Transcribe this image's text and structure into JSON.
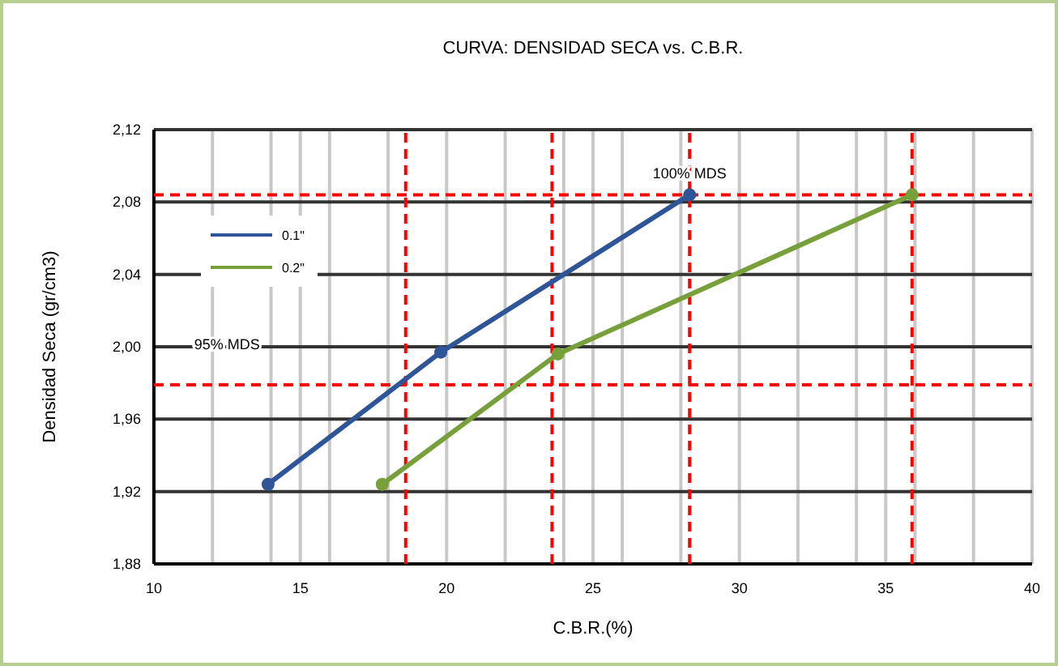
{
  "chart_data": {
    "type": "line",
    "title": "CURVA: DENSIDAD SECA vs. C.B.R.",
    "xlabel": "C.B.R.(%)",
    "ylabel": "Densidad Seca (gr/cm3)",
    "xlim": [
      10,
      40
    ],
    "ylim": [
      1.88,
      2.12
    ],
    "xticks": [
      10,
      {
        "value": 12,
        "label": null
      },
      {
        "value": 14,
        "label": null
      },
      15,
      {
        "value": 16,
        "label": null
      },
      {
        "value": 18,
        "label": null
      },
      20,
      {
        "value": 22,
        "label": null
      },
      {
        "value": 24,
        "label": null
      },
      25,
      {
        "value": 26,
        "label": null
      },
      {
        "value": 28,
        "label": null
      },
      30,
      {
        "value": 32,
        "label": null
      },
      {
        "value": 34,
        "label": null
      },
      35,
      {
        "value": 36,
        "label": null
      },
      {
        "value": 38,
        "label": null
      },
      40
    ],
    "yticks": [
      {
        "value": 1.88,
        "label": "1,88"
      },
      {
        "value": 1.92,
        "label": "1,92"
      },
      {
        "value": 1.96,
        "label": "1,96"
      },
      {
        "value": 2.0,
        "label": "2,00"
      },
      {
        "value": 2.04,
        "label": "2,04"
      },
      {
        "value": 2.08,
        "label": "2,08"
      },
      {
        "value": 2.12,
        "label": "2,12"
      }
    ],
    "grid": true,
    "legend": "top left",
    "marker": "circle",
    "line_style": "solid",
    "series": [
      {
        "name": "0.1\"",
        "color": "#2e5597",
        "x": [
          13.9,
          19.8,
          28.3
        ],
        "values": [
          1.924,
          1.997,
          2.084
        ]
      },
      {
        "name": "0.2\"",
        "color": "#77a03b",
        "x": [
          17.8,
          23.8,
          35.9
        ],
        "values": [
          1.924,
          1.996,
          2.084
        ]
      }
    ],
    "ref_lines": [
      {
        "axis": "y",
        "value": 2.084,
        "color": "#ff0000",
        "line_style": "dashed"
      },
      {
        "axis": "y",
        "value": 1.979,
        "color": "#ff0000",
        "line_style": "dashed"
      },
      {
        "axis": "x",
        "value": 18.6,
        "color": "#ff0000",
        "line_style": "dashed"
      },
      {
        "axis": "x",
        "value": 23.6,
        "color": "#ff0000",
        "line_style": "dashed"
      },
      {
        "axis": "x",
        "value": 28.3,
        "color": "#ff0000",
        "line_style": "dashed"
      },
      {
        "axis": "x",
        "value": 35.9,
        "color": "#ff0000",
        "line_style": "dashed"
      }
    ],
    "annotations": [
      {
        "text": "100% MDS",
        "x": 28.3,
        "y": 2.084
      },
      {
        "text": "95% MDS",
        "x": 12.5,
        "y": 1.979
      }
    ]
  }
}
